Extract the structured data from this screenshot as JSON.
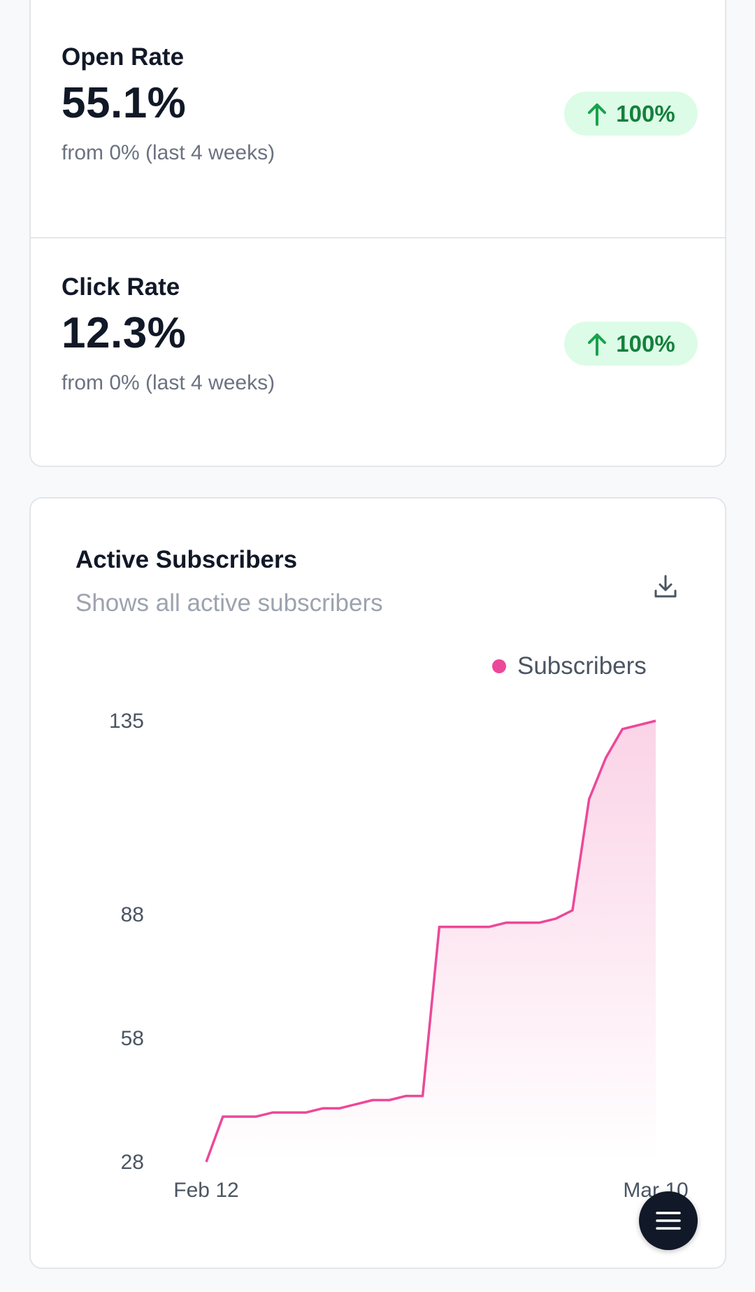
{
  "stats": [
    {
      "label": "Open Rate",
      "value": "55.1%",
      "change": "100%",
      "subtext": "from 0% (last 4 weeks)"
    },
    {
      "label": "Click Rate",
      "value": "12.3%",
      "change": "100%",
      "subtext": "from 0% (last 4 weeks)"
    }
  ],
  "colors": {
    "accent": "#ec4899",
    "badge_bg": "#dcfce7",
    "badge_text": "#15803d",
    "dark": "#111827"
  },
  "icons": {
    "badge": "arrow-up-icon",
    "download": "download-icon",
    "menu": "menu-icon"
  },
  "chart_data": {
    "type": "area",
    "title": "Active Subscribers",
    "subtitle": "Shows all active subscribers",
    "legend_position": "top-right",
    "grid": false,
    "ylim": [
      28,
      135
    ],
    "y_ticks": [
      "135",
      "88",
      "58",
      "28"
    ],
    "x_tick_labels": [
      "Feb 12",
      "Mar 10"
    ],
    "series": [
      {
        "name": "Subscribers",
        "color": "#ec4899",
        "values": [
          28,
          39,
          39,
          39,
          40,
          40,
          40,
          41,
          41,
          42,
          43,
          43,
          44,
          44,
          85,
          85,
          85,
          85,
          86,
          86,
          86,
          87,
          89,
          116,
          126,
          133,
          134,
          135
        ]
      }
    ]
  }
}
